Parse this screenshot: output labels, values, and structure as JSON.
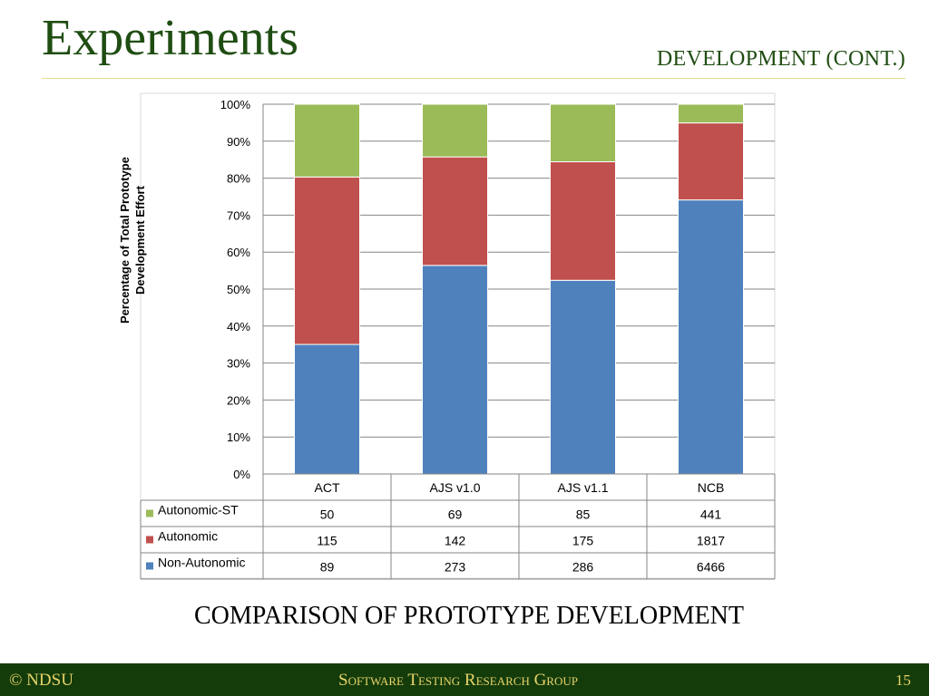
{
  "slide": {
    "title": "Experiments",
    "subtitle": "DEVELOPMENT (CONT.)",
    "caption": "COMPARISON OF PROTOTYPE DEVELOPMENT"
  },
  "footer": {
    "copyright": "© NDSU",
    "group": "Software Testing Research Group",
    "page_number": "15"
  },
  "chart_data": {
    "type": "bar",
    "stacked": "percent",
    "title": "",
    "xlabel": "",
    "ylabel": "Percentage of Total Prototype Development Effort",
    "ylabel_lines": [
      "Percentage of Total Prototype",
      "Development Effort"
    ],
    "ylim": [
      0,
      100
    ],
    "yticks": [
      "0%",
      "10%",
      "20%",
      "30%",
      "40%",
      "50%",
      "60%",
      "70%",
      "80%",
      "90%",
      "100%"
    ],
    "grid": true,
    "categories": [
      "ACT",
      "AJS v1.0",
      "AJS v1.1",
      "NCB"
    ],
    "series": [
      {
        "name": "Non-Autonomic",
        "color": "#4f81bd",
        "values": [
          89,
          273,
          286,
          6466
        ]
      },
      {
        "name": "Autonomic",
        "color": "#c0504d",
        "values": [
          115,
          142,
          175,
          1817
        ]
      },
      {
        "name": "Autonomic-ST",
        "color": "#9bbb59",
        "values": [
          50,
          69,
          85,
          441
        ]
      }
    ],
    "table_row_order": [
      "Autonomic-ST",
      "Autonomic",
      "Non-Autonomic"
    ]
  }
}
